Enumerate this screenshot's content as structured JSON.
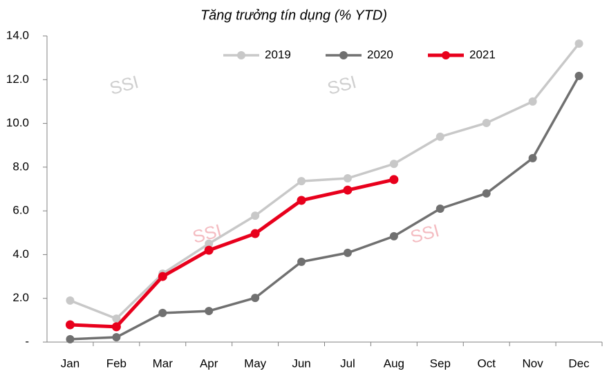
{
  "chart_data": {
    "type": "line",
    "title": "Tăng trưởng tín dụng (% YTD)",
    "watermark": "SSI",
    "categories": [
      "Jan",
      "Feb",
      "Mar",
      "Apr",
      "May",
      "Jun",
      "Jul",
      "Aug",
      "Sep",
      "Oct",
      "Nov",
      "Dec"
    ],
    "series": [
      {
        "name": "2019",
        "color": "#c8c8c8",
        "values": [
          1.9,
          1.07,
          3.13,
          4.5,
          5.78,
          7.36,
          7.49,
          8.15,
          9.39,
          10.02,
          11.0,
          13.65
        ]
      },
      {
        "name": "2020",
        "color": "#707070",
        "values": [
          0.13,
          0.22,
          1.33,
          1.42,
          2.02,
          3.67,
          4.08,
          4.84,
          6.1,
          6.8,
          8.41,
          12.17
        ]
      },
      {
        "name": "2021",
        "color": "#e8001c",
        "values": [
          0.79,
          0.7,
          3.0,
          4.2,
          4.96,
          6.48,
          6.95,
          7.43,
          null,
          null,
          null,
          null
        ]
      }
    ],
    "ylim": [
      0,
      14
    ],
    "yticks": [
      {
        "value": 0,
        "label": "-"
      },
      {
        "value": 2,
        "label": "2.0"
      },
      {
        "value": 4,
        "label": "4.0"
      },
      {
        "value": 6,
        "label": "6.0"
      },
      {
        "value": 8,
        "label": "8.0"
      },
      {
        "value": 10,
        "label": "10.0"
      },
      {
        "value": 12,
        "label": "12.0"
      },
      {
        "value": 14,
        "label": "14.0"
      }
    ],
    "legend": "top"
  }
}
